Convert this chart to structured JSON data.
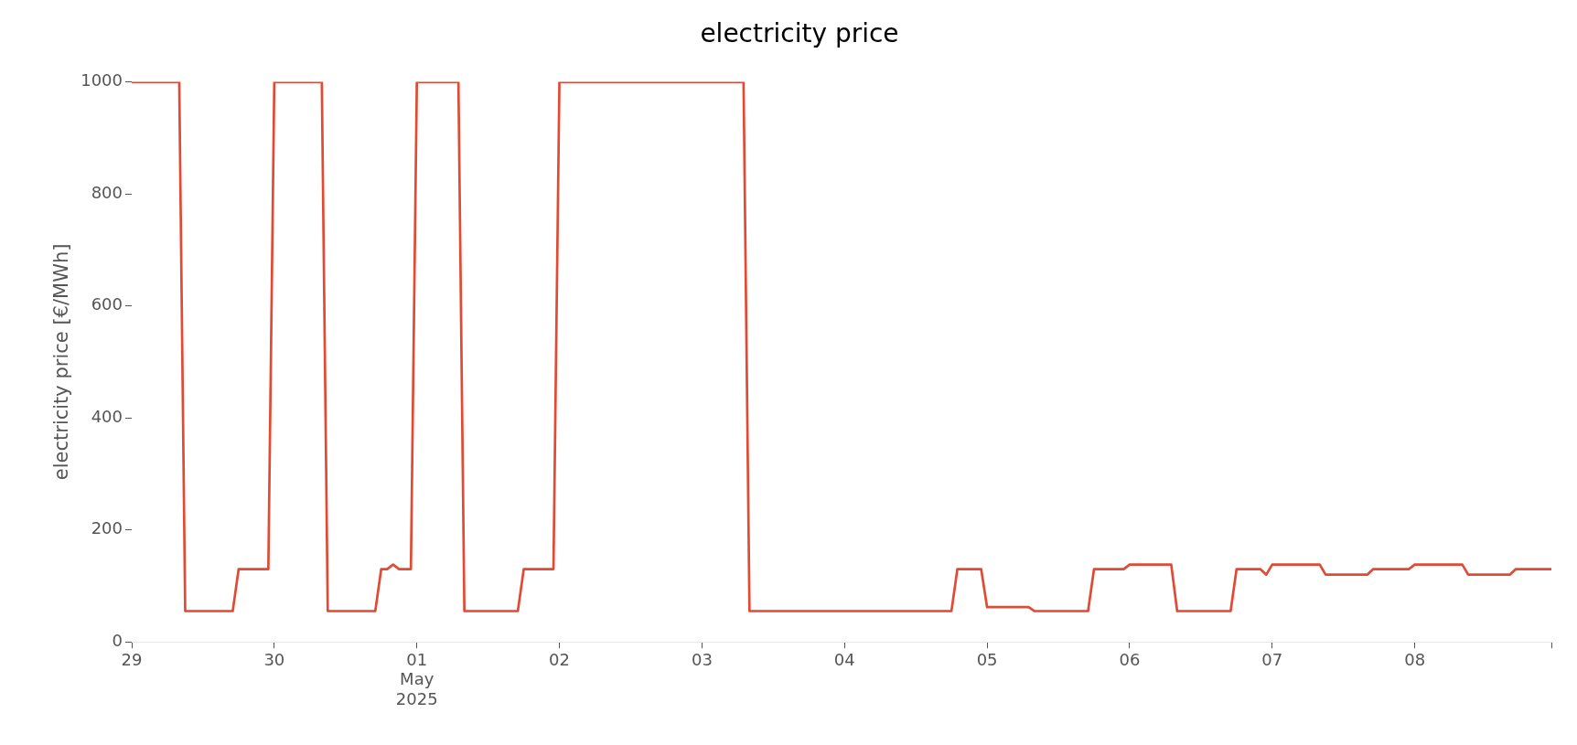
{
  "chart_data": {
    "type": "line",
    "title": "electricity price",
    "ylabel": "electricity price [€/MWh]",
    "xlim": [
      "2025-04-29",
      "2025-05-08T23:00"
    ],
    "xticks": [
      {
        "value": "2025-04-29",
        "label": "29"
      },
      {
        "value": "2025-04-30",
        "label": "30"
      },
      {
        "value": "2025-05-01",
        "label": "01\nMay\n2025"
      },
      {
        "value": "2025-05-02",
        "label": "02"
      },
      {
        "value": "2025-05-03",
        "label": "03"
      },
      {
        "value": "2025-05-04",
        "label": "04"
      },
      {
        "value": "2025-05-05",
        "label": "05"
      },
      {
        "value": "2025-05-06",
        "label": "06"
      },
      {
        "value": "2025-05-07",
        "label": "07"
      },
      {
        "value": "2025-05-08",
        "label": "08"
      },
      {
        "value": "2025-05-08T23:00",
        "label": null
      }
    ],
    "ylim": [
      0,
      1000
    ],
    "yticks": [
      0,
      200,
      400,
      600,
      800,
      1000
    ],
    "grid": false,
    "legend": false,
    "marker": "none",
    "line_style": "solid",
    "series": [
      {
        "color": "#e24a33",
        "x": [
          "2025-04-29T00:00",
          "2025-04-29T08:00",
          "2025-04-29T09:00",
          "2025-04-29T17:00",
          "2025-04-29T18:00",
          "2025-04-29T23:00",
          "2025-04-30T00:00",
          "2025-04-30T08:00",
          "2025-04-30T09:00",
          "2025-04-30T17:00",
          "2025-04-30T18:00",
          "2025-04-30T19:00",
          "2025-04-30T20:00",
          "2025-04-30T21:00",
          "2025-04-30T23:00",
          "2025-05-01T00:00",
          "2025-05-01T07:00",
          "2025-05-01T08:00",
          "2025-05-01T17:00",
          "2025-05-01T18:00",
          "2025-05-01T23:00",
          "2025-05-02T00:00",
          "2025-05-03T07:00",
          "2025-05-03T08:00",
          "2025-05-04T18:00",
          "2025-05-04T19:00",
          "2025-05-04T23:00",
          "2025-05-05T00:00",
          "2025-05-05T07:00",
          "2025-05-05T08:00",
          "2025-05-05T17:00",
          "2025-05-05T18:00",
          "2025-05-05T23:00",
          "2025-05-06T00:00",
          "2025-05-06T07:00",
          "2025-05-06T08:00",
          "2025-05-06T17:00",
          "2025-05-06T18:00",
          "2025-05-06T22:00",
          "2025-05-06T23:00",
          "2025-05-07T00:00",
          "2025-05-07T08:00",
          "2025-05-07T09:00",
          "2025-05-07T16:00",
          "2025-05-07T17:00",
          "2025-05-07T23:00",
          "2025-05-08T00:00",
          "2025-05-08T08:00",
          "2025-05-08T09:00",
          "2025-05-08T16:00",
          "2025-05-08T17:00",
          "2025-05-08T23:00"
        ],
        "values": [
          1000,
          1000,
          55,
          55,
          130,
          130,
          1000,
          1000,
          55,
          55,
          130,
          130,
          138,
          130,
          130,
          1000,
          1000,
          55,
          55,
          130,
          130,
          1000,
          1000,
          55,
          55,
          130,
          130,
          62,
          62,
          55,
          55,
          130,
          130,
          138,
          138,
          55,
          55,
          130,
          130,
          120,
          138,
          138,
          120,
          120,
          130,
          130,
          138,
          138,
          120,
          120,
          130,
          130
        ]
      }
    ]
  }
}
